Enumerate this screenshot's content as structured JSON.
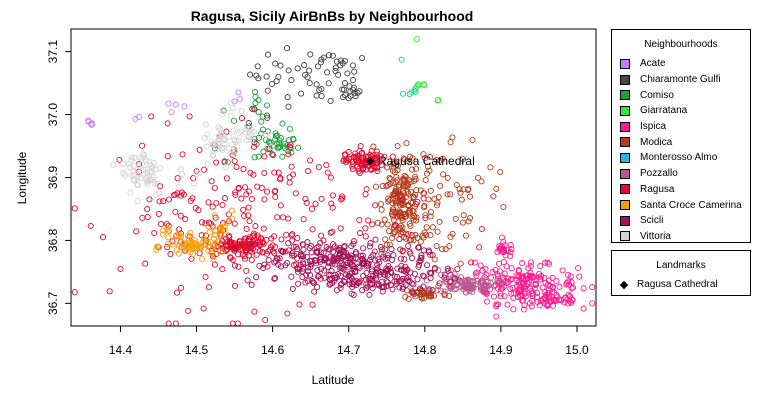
{
  "chart_data": {
    "type": "scatter",
    "title": "Ragusa, Sicily AirBnBs by Neighbourhood",
    "xlabel": "Latitude",
    "ylabel": "Longitude",
    "xlim": [
      14.335,
      15.025
    ],
    "ylim": [
      36.664,
      37.136
    ],
    "xticks": [
      14.4,
      14.5,
      14.6,
      14.7,
      14.8,
      14.9,
      15.0
    ],
    "yticks": [
      36.7,
      36.8,
      36.9,
      37.0,
      37.1
    ],
    "xtick_labels": [
      "14.4",
      "14.5",
      "14.6",
      "14.7",
      "14.8",
      "14.9",
      "15.0"
    ],
    "ytick_labels": [
      "36.7",
      "36.8",
      "36.9",
      "37.0",
      "37.1"
    ],
    "grid": false,
    "legend_title": "Neighbourhoods",
    "legend_position": "right",
    "series": [
      {
        "name": "Acate",
        "color": "#C77CFF",
        "clusters": [
          [
            14.36,
            36.985,
            0.006,
            0.004,
            5
          ],
          [
            14.43,
            36.995,
            0.005,
            0.004,
            2
          ],
          [
            14.475,
            37.015,
            0.01,
            0.008,
            4
          ],
          [
            14.55,
            37.03,
            0.008,
            0.008,
            3
          ]
        ]
      },
      {
        "name": "Chiaramonte Gulfi",
        "color": "#444444",
        "clusters": [
          [
            14.63,
            37.065,
            0.03,
            0.02,
            30
          ],
          [
            14.695,
            37.075,
            0.015,
            0.01,
            15
          ],
          [
            14.7,
            37.035,
            0.008,
            0.006,
            14
          ],
          [
            14.66,
            37.035,
            0.02,
            0.01,
            8
          ],
          [
            14.575,
            37.0,
            0.015,
            0.015,
            5
          ]
        ]
      },
      {
        "name": "Comiso",
        "color": "#1F9E3C",
        "clusters": [
          [
            14.605,
            36.95,
            0.015,
            0.012,
            35
          ],
          [
            14.57,
            36.985,
            0.015,
            0.02,
            8
          ],
          [
            14.575,
            37.03,
            0.006,
            0.012,
            5
          ],
          [
            14.53,
            36.935,
            0.015,
            0.01,
            4
          ],
          [
            14.615,
            36.97,
            0.01,
            0.015,
            5
          ]
        ]
      },
      {
        "name": "Giarratana",
        "color": "#3DE33D",
        "clusters": [
          [
            14.79,
            37.045,
            0.008,
            0.008,
            8
          ],
          [
            14.79,
            37.12,
            0.003,
            0.002,
            1
          ],
          [
            14.82,
            37.02,
            0.003,
            0.003,
            2
          ]
        ]
      },
      {
        "name": "Ispica",
        "color": "#FF1A8C",
        "clusters": [
          [
            14.93,
            36.73,
            0.035,
            0.015,
            170
          ],
          [
            14.97,
            36.705,
            0.02,
            0.008,
            40
          ],
          [
            14.905,
            36.785,
            0.008,
            0.006,
            20
          ],
          [
            14.88,
            36.75,
            0.015,
            0.01,
            10
          ]
        ]
      },
      {
        "name": "Modica",
        "color": "#B33C1A",
        "clusters": [
          [
            14.77,
            36.855,
            0.012,
            0.03,
            150
          ],
          [
            14.78,
            36.92,
            0.03,
            0.02,
            25
          ],
          [
            14.8,
            36.8,
            0.025,
            0.04,
            40
          ],
          [
            14.8,
            36.715,
            0.015,
            0.005,
            40
          ],
          [
            14.84,
            36.87,
            0.04,
            0.05,
            40
          ]
        ]
      },
      {
        "name": "Monterosso Almo",
        "color": "#29B5E6",
        "clusters": [
          [
            14.765,
            37.09,
            0.003,
            0.003,
            1
          ],
          [
            14.78,
            37.035,
            0.004,
            0.003,
            3
          ]
        ]
      },
      {
        "name": "Pozzallo",
        "color": "#B9588F",
        "clusters": [
          [
            14.855,
            36.73,
            0.02,
            0.006,
            80
          ],
          [
            14.83,
            36.745,
            0.01,
            0.005,
            10
          ]
        ]
      },
      {
        "name": "Ragusa",
        "color": "#E30B2E",
        "clusters": [
          [
            14.72,
            36.925,
            0.012,
            0.008,
            90
          ],
          [
            14.56,
            36.79,
            0.025,
            0.008,
            120
          ],
          [
            14.6,
            36.84,
            0.1,
            0.07,
            220
          ],
          [
            14.48,
            36.82,
            0.04,
            0.04,
            25
          ],
          [
            14.475,
            36.875,
            0.005,
            0.003,
            6
          ]
        ]
      },
      {
        "name": "Santa Croce Camerina",
        "color": "#F59E0B",
        "clusters": [
          [
            14.5,
            36.79,
            0.02,
            0.008,
            60
          ],
          [
            14.53,
            36.82,
            0.01,
            0.015,
            15
          ],
          [
            14.465,
            36.81,
            0.008,
            0.006,
            10
          ]
        ]
      },
      {
        "name": "Scicli",
        "color": "#A50F57",
        "clusters": [
          [
            14.7,
            36.76,
            0.05,
            0.02,
            220
          ],
          [
            14.75,
            36.735,
            0.04,
            0.01,
            70
          ],
          [
            14.65,
            36.775,
            0.03,
            0.01,
            60
          ]
        ]
      },
      {
        "name": "Vittoria",
        "color": "#D3D3D3",
        "clusters": [
          [
            14.43,
            36.91,
            0.015,
            0.02,
            55
          ],
          [
            14.535,
            36.955,
            0.012,
            0.015,
            40
          ],
          [
            14.57,
            36.97,
            0.01,
            0.01,
            15
          ],
          [
            14.55,
            37.0,
            0.01,
            0.01,
            5
          ],
          [
            14.495,
            36.9,
            0.01,
            0.01,
            6
          ]
        ]
      }
    ],
    "landmarks": {
      "title": "Landmarks",
      "points": [
        {
          "name": "Ragusa Cathedral",
          "x": 14.728,
          "y": 36.926
        }
      ]
    }
  }
}
